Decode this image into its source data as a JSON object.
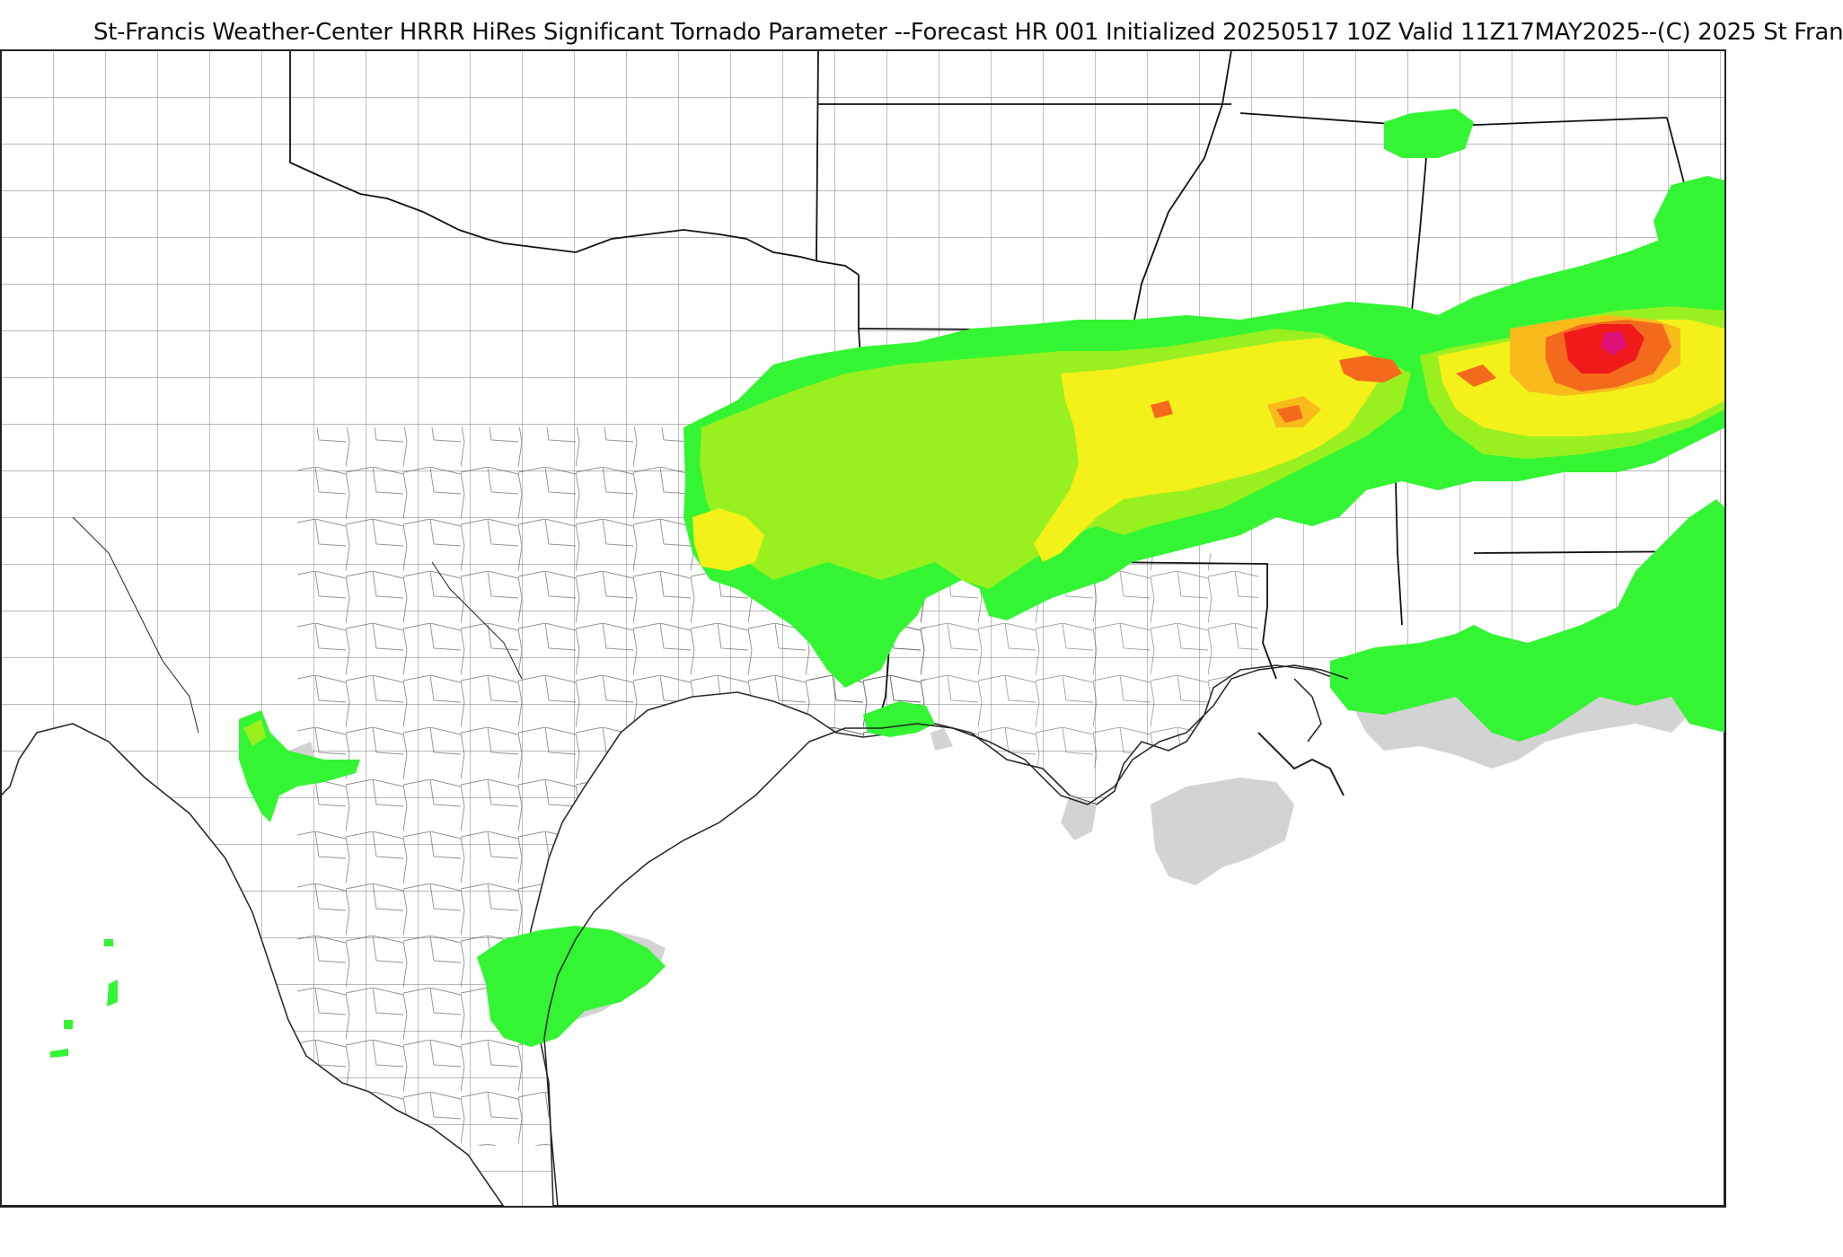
{
  "header": {
    "title": "St-Francis Weather-Center HRRR HiRes Significant Tornado Parameter --Forecast HR 001 Initialized 20250517 10Z Valid 11Z17MAY2025--(C) 2025 St Fran"
  },
  "map": {
    "product": "Significant Tornado Parameter",
    "colors": {
      "background": "#ffffff",
      "land_border": "#2b2b2b",
      "county_line": "#333333",
      "level_0": "#d3d3d3",
      "level_1": "#33f533",
      "level_2": "#99f01f",
      "level_3": "#f4f01a",
      "level_4": "#f8bb1a",
      "level_5": "#f46a1c",
      "level_6": "#f01a1a",
      "level_7": "#e0117a"
    }
  }
}
